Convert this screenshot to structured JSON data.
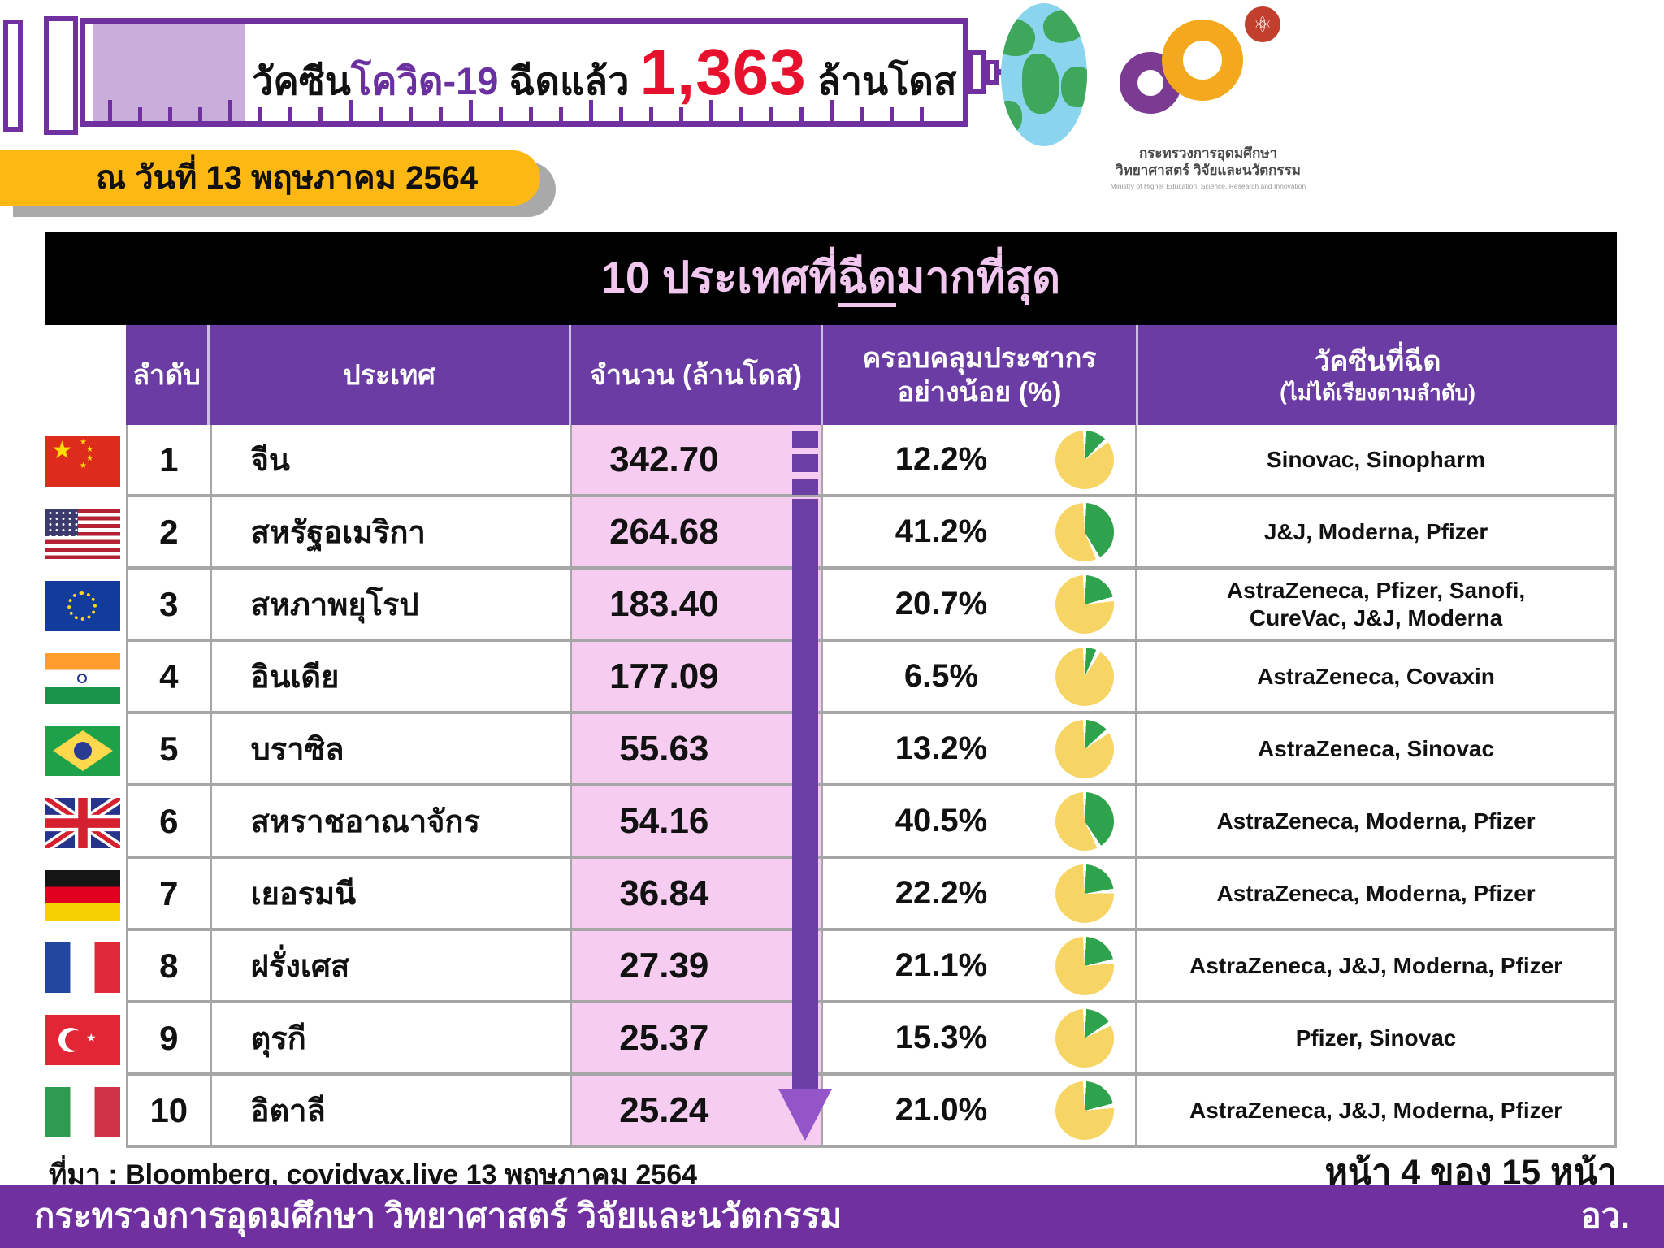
{
  "colors": {
    "accent_purple": "#7030A0",
    "header_purple": "#6B3CA4",
    "pink_column": "#F6CCF1",
    "banner_yellow": "#FDB813",
    "highlight_red": "#E8112D",
    "title_pink": "#F1C7EF",
    "pie_yellow": "#F7D565",
    "pie_green": "#2EA24C",
    "arrow_head_purple": "#9455C8"
  },
  "header": {
    "title_prefix": "วัคซีน",
    "title_highlight": "โควิด-19",
    "title_middle": " ฉีดแล้ว ",
    "total_doses": "1,363",
    "total_unit": " ล้านโดส",
    "date_label": "ณ วันที่ 13 พฤษภาคม 2564",
    "globe_icon": "earth-globe",
    "logo": {
      "atom_icon": "⚛",
      "thai_line1": "กระทรวงการอุดมศึกษา",
      "thai_line2": "วิทยาศาสตร์ วิจัยและนวัตกรรม",
      "english_line": "Ministry of Higher Education, Science, Research and Innovation"
    }
  },
  "table_title": {
    "prefix": "10 ประเทศที่",
    "underlined": "ฉีด",
    "suffix": "มากที่สุด"
  },
  "table": {
    "columns": [
      {
        "label": "ลำดับ"
      },
      {
        "label": "ประเทศ"
      },
      {
        "label": "จำนวน (ล้านโดส)"
      },
      {
        "label": "ครอบคลุมประชากร\nอย่างน้อย (%)"
      },
      {
        "label": "วัคซีนที่ฉีด",
        "sub": "(ไม่ได้เรียงตามลำดับ)"
      }
    ],
    "rows": [
      {
        "rank": "1",
        "country": "จีน",
        "flag": "cn",
        "doses": "342.70",
        "coverage": "12.2%",
        "coverage_value": 12.2,
        "vaccines": "Sinovac, Sinopharm"
      },
      {
        "rank": "2",
        "country": "สหรัฐอเมริกา",
        "flag": "us",
        "doses": "264.68",
        "coverage": "41.2%",
        "coverage_value": 41.2,
        "vaccines": "J&J, Moderna, Pfizer"
      },
      {
        "rank": "3",
        "country": "สหภาพยุโรป",
        "flag": "eu",
        "doses": "183.40",
        "coverage": "20.7%",
        "coverage_value": 20.7,
        "vaccines": "AstraZeneca, Pfizer, Sanofi,\nCureVac, J&J, Moderna"
      },
      {
        "rank": "4",
        "country": "อินเดีย",
        "flag": "in",
        "doses": "177.09",
        "coverage": "6.5%",
        "coverage_value": 6.5,
        "vaccines": "AstraZeneca, Covaxin"
      },
      {
        "rank": "5",
        "country": "บราซิล",
        "flag": "br",
        "doses": "55.63",
        "coverage": "13.2%",
        "coverage_value": 13.2,
        "vaccines": "AstraZeneca, Sinovac"
      },
      {
        "rank": "6",
        "country": "สหราชอาณาจักร",
        "flag": "uk",
        "doses": "54.16",
        "coverage": "40.5%",
        "coverage_value": 40.5,
        "vaccines": "AstraZeneca, Moderna, Pfizer"
      },
      {
        "rank": "7",
        "country": "เยอรมนี",
        "flag": "de",
        "doses": "36.84",
        "coverage": "22.2%",
        "coverage_value": 22.2,
        "vaccines": "AstraZeneca, Moderna, Pfizer"
      },
      {
        "rank": "8",
        "country": "ฝรั่งเศส",
        "flag": "fr",
        "doses": "27.39",
        "coverage": "21.1%",
        "coverage_value": 21.1,
        "vaccines": "AstraZeneca, J&J, Moderna, Pfizer"
      },
      {
        "rank": "9",
        "country": "ตุรกี",
        "flag": "tr",
        "doses": "25.37",
        "coverage": "15.3%",
        "coverage_value": 15.3,
        "vaccines": "Pfizer, Sinovac"
      },
      {
        "rank": "10",
        "country": "อิตาลี",
        "flag": "it",
        "doses": "25.24",
        "coverage": "21.0%",
        "coverage_value": 21.0,
        "vaccines": "AstraZeneca, J&J, Moderna, Pfizer"
      }
    ]
  },
  "chart_data": {
    "type": "table",
    "title": "10 ประเทศที่ฉีดมากที่สุด",
    "as_of": "13 พฤษภาคม 2564",
    "total_doses_million": 1363,
    "columns": [
      "ลำดับ",
      "ประเทศ",
      "จำนวน (ล้านโดส)",
      "ครอบคลุมประชากรอย่างน้อย (%)",
      "วัคซีนที่ฉีด (ไม่ได้เรียงตามลำดับ)"
    ],
    "rows": [
      [
        "1",
        "จีน",
        342.7,
        12.2,
        "Sinovac, Sinopharm"
      ],
      [
        "2",
        "สหรัฐอเมริกา",
        264.68,
        41.2,
        "J&J, Moderna, Pfizer"
      ],
      [
        "3",
        "สหภาพยุโรป",
        183.4,
        20.7,
        "AstraZeneca, Pfizer, Sanofi, CureVac, J&J, Moderna"
      ],
      [
        "4",
        "อินเดีย",
        177.09,
        6.5,
        "AstraZeneca, Covaxin"
      ],
      [
        "5",
        "บราซิล",
        55.63,
        13.2,
        "AstraZeneca, Sinovac"
      ],
      [
        "6",
        "สหราชอาณาจักร",
        54.16,
        40.5,
        "AstraZeneca, Moderna, Pfizer"
      ],
      [
        "7",
        "เยอรมนี",
        36.84,
        22.2,
        "AstraZeneca, Moderna, Pfizer"
      ],
      [
        "8",
        "ฝรั่งเศส",
        27.39,
        21.1,
        "AstraZeneca, J&J, Moderna, Pfizer"
      ],
      [
        "9",
        "ตุรกี",
        25.37,
        15.3,
        "Pfizer, Sinovac"
      ],
      [
        "10",
        "อิตาลี",
        25.24,
        21.0,
        "AstraZeneca, J&J, Moderna, Pfizer"
      ]
    ]
  },
  "footer": {
    "source": "ที่มา : Bloomberg, covidvax.live 13 พฤษภาคม 2564",
    "page": "หน้า 4 ของ 15 หน้า",
    "ministry": "กระทรวงการอุดมศึกษา วิทยาศาสตร์ วิจัยและนวัตกรรม",
    "ministry_abbr": "อว."
  }
}
